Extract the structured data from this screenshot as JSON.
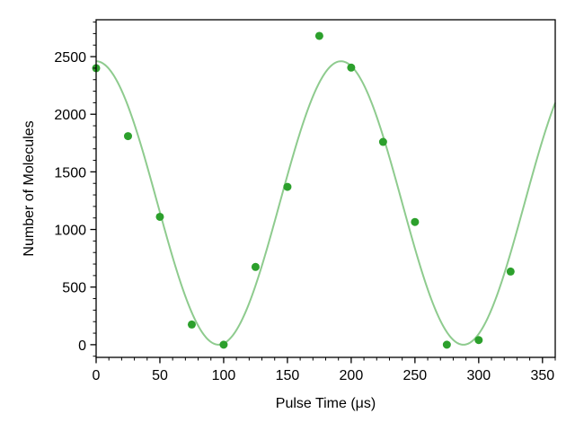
{
  "chart_data": {
    "type": "scatter",
    "title": "",
    "xlabel": "Pulse Time (μs)",
    "ylabel": "Number of Molecules",
    "xlim": [
      0,
      360
    ],
    "ylim": [
      -110,
      2820
    ],
    "xticks": [
      0,
      50,
      100,
      150,
      200,
      250,
      300,
      350
    ],
    "yticks": [
      0,
      500,
      1000,
      1500,
      2000,
      2500
    ],
    "x_minor_step": 10,
    "y_minor_step": 100,
    "grid": false,
    "legend": "none",
    "series": [
      {
        "kind": "points",
        "color": "#2ca02c",
        "x": [
          0,
          25,
          50,
          75,
          100,
          125,
          150,
          175,
          200,
          225,
          250,
          275,
          300,
          325
        ],
        "y": [
          2400,
          1810,
          1110,
          175,
          0,
          675,
          1370,
          2680,
          2405,
          1760,
          1065,
          0,
          40,
          635
        ]
      },
      {
        "kind": "fit-curve",
        "color": "#8ecb8e",
        "model": "offset + amplitude * cos(2*pi*x/period)",
        "offset": 1230,
        "amplitude": 1230,
        "period": 192
      }
    ]
  }
}
